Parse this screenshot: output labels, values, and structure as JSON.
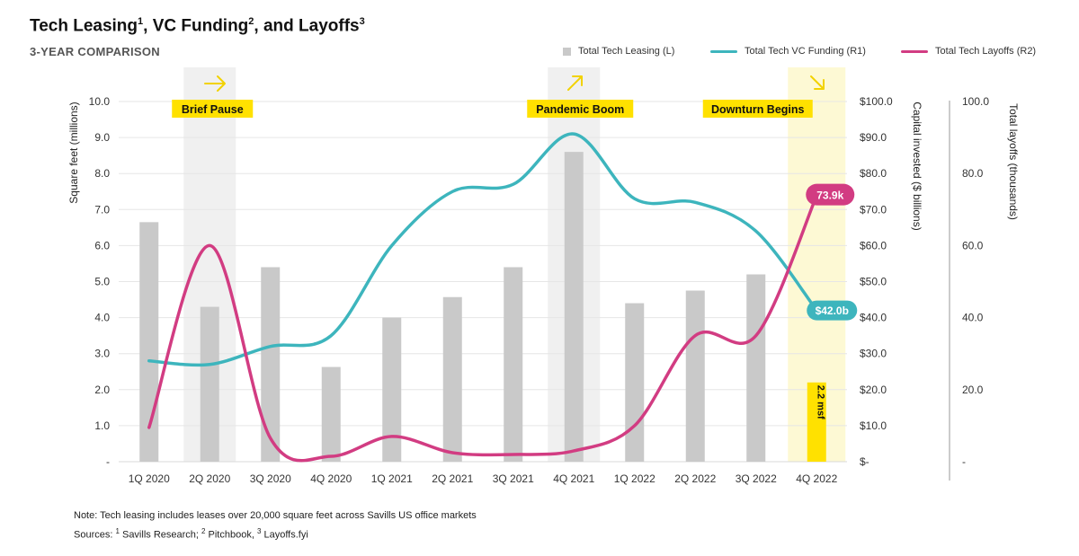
{
  "header": {
    "title_parts": [
      "Tech Leasing",
      "1",
      ", VC Funding",
      "2",
      ", and Layoffs",
      "3"
    ],
    "subtitle": "3-YEAR COMPARISON"
  },
  "legend": {
    "leasing": "Total Tech Leasing (L)",
    "vc": "Total Tech VC Funding (R1)",
    "layoffs": "Total Tech Layoffs (R2)"
  },
  "colors": {
    "leasing": "#c9c9c9",
    "vc": "#3db5bd",
    "layoffs": "#d23c82",
    "highlight": "#ffe100",
    "pause_band": "#f0f0f0",
    "downturn_band": "#fdf9d4"
  },
  "annotations": {
    "brief_pause": "Brief Pause",
    "pandemic_boom": "Pandemic Boom",
    "downturn_begins": "Downturn Begins",
    "vc_end_label": "$42.0b",
    "layoffs_end_label": "73.9k",
    "bar_label": "2.2 msf",
    "icons": [
      "arrow-right-icon",
      "arrow-up-right-icon",
      "arrow-down-right-icon"
    ]
  },
  "chart_data": {
    "type": "bar",
    "categories": [
      "1Q 2020",
      "2Q 2020",
      "3Q 2020",
      "4Q 2020",
      "1Q 2021",
      "2Q 2021",
      "3Q 2021",
      "4Q 2021",
      "1Q 2022",
      "2Q 2022",
      "3Q 2022",
      "4Q 2022"
    ],
    "series": [
      {
        "name": "Total Tech Leasing (L)",
        "type": "bar",
        "axis": "left",
        "values": [
          6.65,
          4.3,
          5.4,
          2.63,
          4.0,
          4.57,
          5.4,
          8.6,
          4.4,
          4.75,
          5.2,
          2.2
        ]
      },
      {
        "name": "Total Tech VC Funding (R1)",
        "type": "line",
        "axis": "right1",
        "values": [
          28,
          27,
          32,
          35,
          60,
          75,
          77,
          91,
          73,
          72,
          64,
          42
        ]
      },
      {
        "name": "Total Tech Layoffs (R2)",
        "type": "line",
        "axis": "right2",
        "values": [
          9.5,
          60,
          6.5,
          1.5,
          7,
          2.5,
          2,
          3,
          10,
          35,
          35,
          73.9
        ]
      }
    ],
    "y_left": {
      "label": "Square feet (millions)",
      "min": 0,
      "max": 10,
      "ticks": [
        "-",
        "1.0",
        "2.0",
        "3.0",
        "4.0",
        "5.0",
        "6.0",
        "7.0",
        "8.0",
        "9.0",
        "10.0"
      ]
    },
    "y_right1": {
      "label": "Capital invested ($ billions)",
      "min": 0,
      "max": 100,
      "ticks": [
        "$-",
        "$10.0",
        "$20.0",
        "$30.0",
        "$40.0",
        "$50.0",
        "$60.0",
        "$70.0",
        "$80.0",
        "$90.0",
        "$100.0"
      ]
    },
    "y_right2": {
      "label": "Total layoffs (thousands)",
      "min": 0,
      "max": 100,
      "ticks": [
        "-",
        "20.0",
        "40.0",
        "60.0",
        "80.0",
        "100.0"
      ]
    },
    "grid": true
  },
  "notes": {
    "note": "Note: Tech leasing includes leases over 20,000 square feet across Savills US office markets",
    "sources_prefix": "Sources: ",
    "s1_sup": "1",
    "s1": " Savills Research; ",
    "s2_sup": "2",
    "s2": " Pitchbook, ",
    "s3_sup": "3",
    "s3": " Layoffs.fyi"
  }
}
